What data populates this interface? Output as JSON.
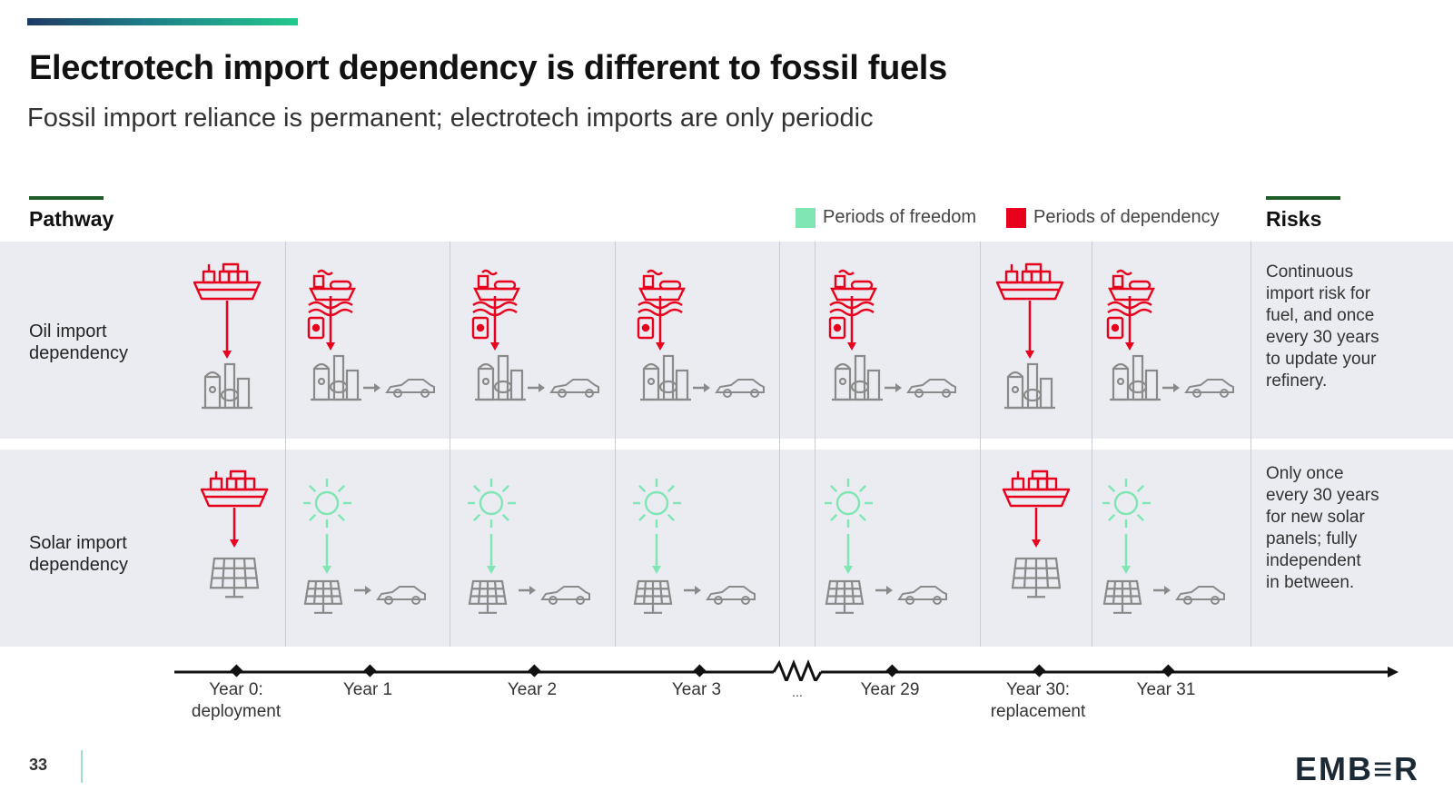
{
  "title": "Electrotech import dependency is different to fossil fuels",
  "subtitle": "Fossil import reliance is permanent; electrotech imports are only periodic",
  "headers": {
    "pathway": "Pathway",
    "risks": "Risks"
  },
  "legend": [
    {
      "label": "Periods of freedom",
      "color": "#7fe6b4"
    },
    {
      "label": "Periods of dependency",
      "color": "#e8001c"
    }
  ],
  "rows": [
    {
      "label": [
        "Oil import",
        "dependency"
      ],
      "risk": [
        "Continuous",
        "import risk for",
        "fuel, and once",
        "every 30 years",
        "to update your",
        "refinery."
      ],
      "cells": [
        "ship-to-refinery-icon",
        "tanker-refinery-car-icon",
        "tanker-refinery-car-icon",
        "tanker-refinery-car-icon",
        "tanker-refinery-car-icon",
        "ship-to-refinery-icon",
        "tanker-refinery-car-icon"
      ]
    },
    {
      "label": [
        "Solar import",
        "dependency"
      ],
      "risk": [
        "Only once",
        "every 30 years",
        "for new solar",
        "panels; fully",
        "independent",
        "in between."
      ],
      "cells": [
        "ship-to-solar-panel-icon",
        "sun-panel-car-icon",
        "sun-panel-car-icon",
        "sun-panel-car-icon",
        "sun-panel-car-icon",
        "ship-to-solar-panel-icon",
        "sun-panel-car-icon"
      ]
    }
  ],
  "timeline": [
    {
      "label": [
        "Year 0:",
        "deployment"
      ]
    },
    {
      "label": [
        "Year 1"
      ]
    },
    {
      "label": [
        "Year 2"
      ]
    },
    {
      "label": [
        "Year 3"
      ]
    },
    {
      "label": [
        "Year 29"
      ]
    },
    {
      "label": [
        "Year 30:",
        "replacement"
      ]
    },
    {
      "label": [
        "Year 31"
      ]
    }
  ],
  "timeline_break": "...",
  "page_number": "33",
  "logo": "EMB≡R",
  "colors": {
    "dependency": "#e8001c",
    "freedom": "#7fe6b4",
    "neutral": "#8a8a8a",
    "band": "#eaecf1"
  }
}
